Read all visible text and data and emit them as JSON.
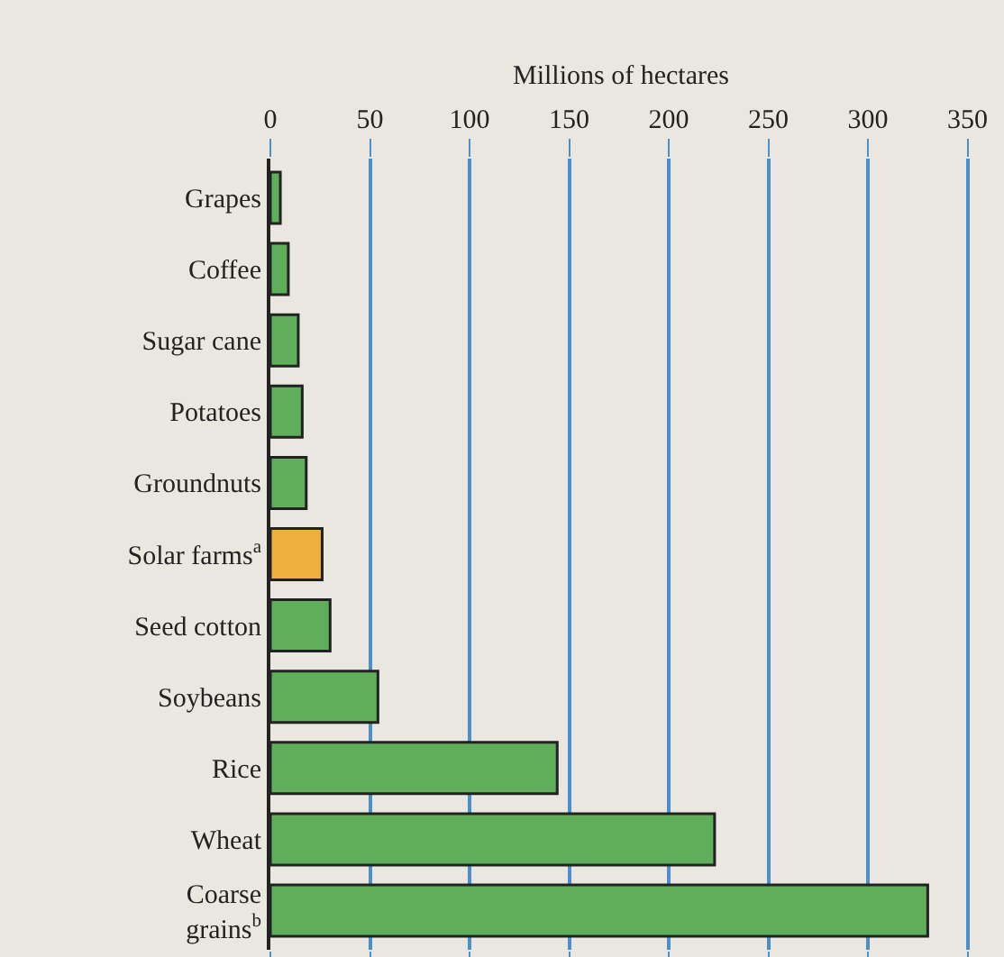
{
  "chart_data": {
    "type": "bar",
    "orientation": "horizontal",
    "xlabel": "Millions of hectares",
    "categories": [
      "Grapes",
      "Coffee",
      "Sugar cane",
      "Potatoes",
      "Groundnuts",
      "Solar farms$^{a}$",
      "Seed cotton",
      "Soybeans",
      "Rice",
      "Wheat",
      "Coarse\ngrains$^{b}$"
    ],
    "values": [
      5,
      9,
      14,
      16,
      18,
      26,
      30,
      54,
      144,
      223,
      330
    ],
    "colors": [
      "#5fae5a",
      "#5fae5a",
      "#5fae5a",
      "#5fae5a",
      "#5fae5a",
      "#f0b040",
      "#5fae5a",
      "#5fae5a",
      "#5fae5a",
      "#5fae5a",
      "#5fae5a"
    ],
    "xlim": [
      0,
      352
    ],
    "xticks": [
      0,
      50,
      100,
      150,
      200,
      250,
      300,
      350
    ],
    "grid": "x",
    "legend": false
  }
}
